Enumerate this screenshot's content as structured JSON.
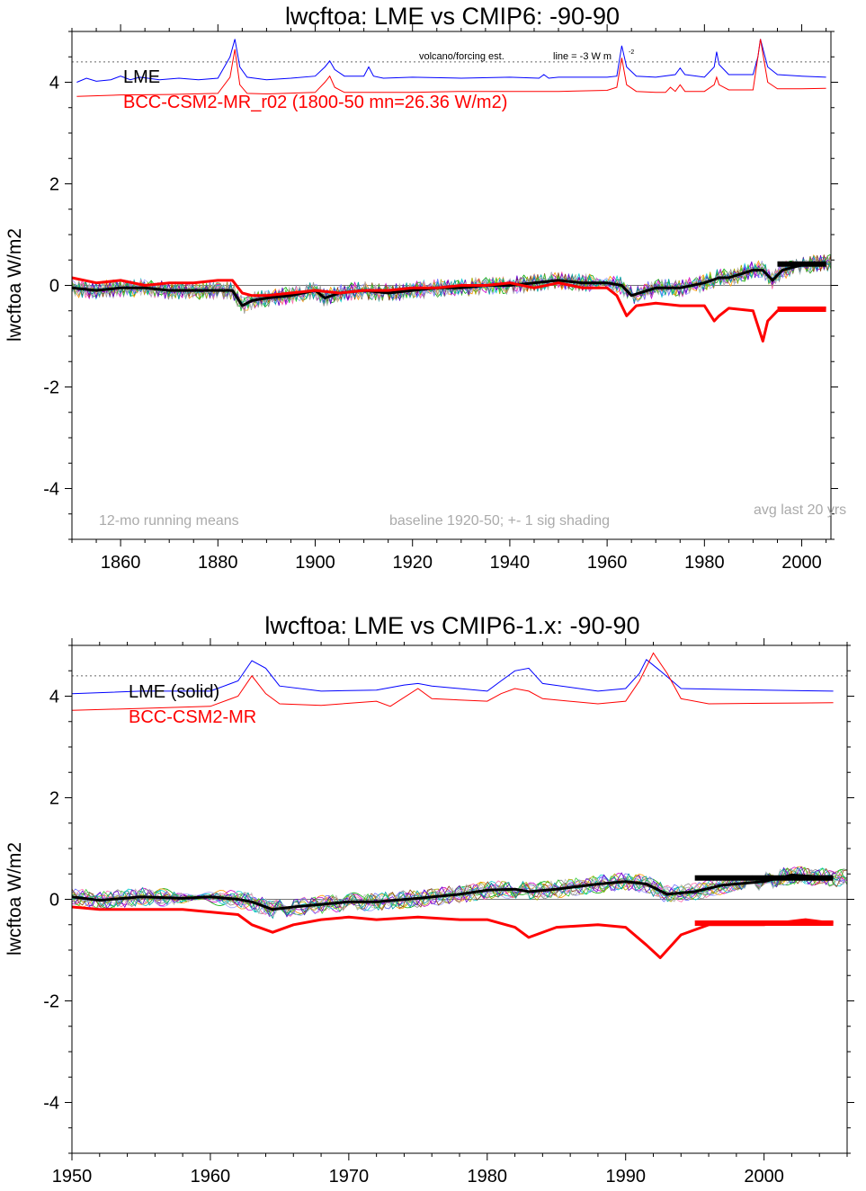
{
  "chart_data": [
    {
      "type": "line",
      "title": "lwcftoa: LME vs CMIP6: -90-90",
      "ylabel": "lwcftoa W/m2",
      "xlabel": "",
      "xlim": [
        1850,
        2006
      ],
      "ylim": [
        -5,
        5
      ],
      "xticks": [
        1860,
        1880,
        1900,
        1920,
        1940,
        1960,
        1980,
        2000
      ],
      "yticks": [
        -4,
        -2,
        0,
        2,
        4
      ],
      "grid": false,
      "reference_lines": {
        "zero": 0,
        "volcano_dotted": 4.4
      },
      "legend": [
        {
          "label": "LME",
          "color": "#000000"
        },
        {
          "label": "BCC-CSM2-MR_r02 (1800-50 mn=26.36 W/m2)",
          "color": "#ff0000"
        }
      ],
      "annotations": {
        "volcano": "volcano/forcing est.",
        "line_note": "line = -3 W m",
        "superscript": "-2",
        "running": "12-mo running means",
        "baseline": "baseline 1920-50; +- 1 sig shading",
        "avg": "avg last 20 yrs"
      },
      "series": [
        {
          "name": "LME",
          "color": "#000000",
          "x": [
            1850,
            1855,
            1860,
            1865,
            1870,
            1875,
            1880,
            1883,
            1885,
            1887,
            1890,
            1895,
            1900,
            1902,
            1905,
            1910,
            1915,
            1920,
            1925,
            1930,
            1935,
            1940,
            1945,
            1950,
            1955,
            1960,
            1963,
            1965,
            1970,
            1975,
            1980,
            1983,
            1985,
            1990,
            1992,
            1994,
            1996,
            2000,
            2005
          ],
          "values": [
            -0.05,
            -0.1,
            -0.05,
            -0.05,
            -0.1,
            -0.1,
            -0.1,
            -0.1,
            -0.4,
            -0.3,
            -0.25,
            -0.2,
            -0.1,
            -0.25,
            -0.15,
            -0.1,
            -0.15,
            -0.1,
            -0.05,
            -0.05,
            0.0,
            0.0,
            0.05,
            0.1,
            0.05,
            0.05,
            0.0,
            -0.2,
            -0.05,
            -0.05,
            0.05,
            0.15,
            0.15,
            0.3,
            0.3,
            0.1,
            0.3,
            0.4,
            0.45
          ]
        },
        {
          "name": "BCC-CSM2-MR_r02",
          "color": "#ff0000",
          "x": [
            1850,
            1855,
            1860,
            1865,
            1870,
            1875,
            1880,
            1883,
            1885,
            1887,
            1890,
            1895,
            1900,
            1905,
            1910,
            1915,
            1920,
            1925,
            1930,
            1935,
            1940,
            1945,
            1950,
            1955,
            1960,
            1962,
            1964,
            1966,
            1970,
            1975,
            1980,
            1982,
            1983,
            1985,
            1990,
            1992,
            1993,
            1995,
            2000,
            2005
          ],
          "values": [
            0.15,
            0.05,
            0.1,
            0.0,
            0.05,
            0.05,
            0.1,
            0.1,
            -0.15,
            -0.2,
            -0.2,
            -0.15,
            -0.1,
            -0.15,
            -0.1,
            -0.1,
            -0.05,
            -0.05,
            0.0,
            0.0,
            0.05,
            -0.05,
            0.05,
            -0.05,
            -0.05,
            -0.2,
            -0.6,
            -0.4,
            -0.35,
            -0.4,
            -0.4,
            -0.7,
            -0.6,
            -0.45,
            -0.5,
            -1.1,
            -0.7,
            -0.5,
            -0.45,
            -0.45
          ]
        }
      ],
      "forcing_lines": [
        {
          "name": "LME",
          "color": "#0000ff",
          "x": [
            1851,
            1853,
            1855,
            1858,
            1860,
            1862,
            1864,
            1868,
            1872,
            1876,
            1880,
            1882.5,
            1883.5,
            1884.5,
            1886,
            1890,
            1895,
            1900,
            1902,
            1903,
            1904,
            1906,
            1910,
            1911,
            1912,
            1914,
            1920,
            1930,
            1940,
            1946,
            1947,
            1948,
            1950,
            1955,
            1960,
            1962,
            1963,
            1964,
            1966,
            1970,
            1974,
            1975,
            1976,
            1980,
            1982,
            1982.5,
            1983,
            1985,
            1990,
            1991,
            1991.5,
            1993,
            1995,
            2000,
            2005
          ],
          "values": [
            4.0,
            4.08,
            4.02,
            4.05,
            4.12,
            4.05,
            4.1,
            4.05,
            4.08,
            4.05,
            4.08,
            4.5,
            4.85,
            4.3,
            4.1,
            4.05,
            4.08,
            4.12,
            4.3,
            4.42,
            4.25,
            4.12,
            4.12,
            4.3,
            4.12,
            4.08,
            4.1,
            4.08,
            4.1,
            4.08,
            4.15,
            4.08,
            4.1,
            4.1,
            4.1,
            4.12,
            4.72,
            4.3,
            4.12,
            4.1,
            4.15,
            4.28,
            4.15,
            4.1,
            4.3,
            4.6,
            4.35,
            4.15,
            4.15,
            4.5,
            4.85,
            4.3,
            4.15,
            4.12,
            4.1
          ]
        },
        {
          "name": "BCC-CSM2-MR",
          "color": "#ff0000",
          "x": [
            1851,
            1860,
            1870,
            1880,
            1882.5,
            1883.5,
            1884.5,
            1886,
            1890,
            1900,
            1902,
            1903,
            1904,
            1906,
            1910,
            1920,
            1930,
            1940,
            1950,
            1960,
            1962,
            1963,
            1964,
            1966,
            1970,
            1972,
            1973,
            1974,
            1975,
            1976,
            1980,
            1982,
            1982.5,
            1983,
            1985,
            1990,
            1991,
            1991.5,
            1993,
            1995,
            2000,
            2005
          ],
          "values": [
            3.72,
            3.75,
            3.76,
            3.78,
            4.1,
            4.65,
            3.95,
            3.78,
            3.77,
            3.8,
            4.0,
            4.12,
            3.9,
            3.8,
            3.8,
            3.8,
            3.82,
            3.82,
            3.82,
            3.84,
            3.9,
            4.48,
            3.95,
            3.82,
            3.8,
            3.8,
            3.9,
            3.82,
            3.95,
            3.82,
            3.82,
            3.95,
            4.1,
            3.95,
            3.85,
            3.85,
            4.5,
            4.85,
            4.0,
            3.87,
            3.87,
            3.88
          ]
        }
      ],
      "last20_averages": [
        {
          "name": "LME",
          "color": "#000000",
          "value": 0.42,
          "x_range": [
            1995,
            2005
          ]
        },
        {
          "name": "BCC-CSM2-MR",
          "color": "#ff0000",
          "value": -0.47,
          "x_range": [
            1995,
            2005
          ]
        }
      ]
    },
    {
      "type": "line",
      "title": "lwcftoa: LME vs CMIP6-1.x: -90-90",
      "ylabel": "lwcftoa W/m2",
      "xlabel": "",
      "xlim": [
        1950,
        2006
      ],
      "ylim": [
        -5,
        5
      ],
      "xticks": [
        1950,
        1960,
        1970,
        1980,
        1990,
        2000
      ],
      "yticks": [
        -4,
        -2,
        0,
        2,
        4
      ],
      "grid": false,
      "reference_lines": {
        "zero": 0,
        "volcano_dotted": 4.4
      },
      "legend": [
        {
          "label": "LME (solid)",
          "color": "#000000"
        },
        {
          "label": "BCC-CSM2-MR",
          "color": "#ff0000"
        }
      ],
      "series": [
        {
          "name": "LME",
          "color": "#000000",
          "x": [
            1950,
            1952,
            1955,
            1958,
            1960,
            1962,
            1963,
            1964.5,
            1966,
            1968,
            1970,
            1972,
            1975,
            1978,
            1980,
            1982,
            1983,
            1985,
            1988,
            1990,
            1991.5,
            1993,
            1995,
            1997,
            2000,
            2002,
            2005
          ],
          "values": [
            0.05,
            -0.02,
            0.05,
            0.02,
            0.05,
            0.0,
            -0.05,
            -0.2,
            -0.15,
            -0.1,
            -0.05,
            -0.05,
            0.02,
            0.1,
            0.18,
            0.2,
            0.15,
            0.2,
            0.3,
            0.35,
            0.3,
            0.1,
            0.15,
            0.28,
            0.35,
            0.48,
            0.42
          ]
        },
        {
          "name": "BCC-CSM2-MR",
          "color": "#ff0000",
          "x": [
            1950,
            1952,
            1955,
            1958,
            1960,
            1962,
            1963,
            1964.5,
            1966,
            1968,
            1970,
            1972,
            1975,
            1978,
            1980,
            1982,
            1983,
            1985,
            1988,
            1990,
            1991.5,
            1992.5,
            1994,
            1996,
            2000,
            2003,
            2005
          ],
          "values": [
            -0.15,
            -0.2,
            -0.2,
            -0.2,
            -0.25,
            -0.3,
            -0.5,
            -0.65,
            -0.5,
            -0.4,
            -0.35,
            -0.4,
            -0.35,
            -0.4,
            -0.4,
            -0.55,
            -0.75,
            -0.55,
            -0.5,
            -0.55,
            -0.9,
            -1.15,
            -0.7,
            -0.5,
            -0.5,
            -0.4,
            -0.47
          ]
        }
      ],
      "forcing_lines": [
        {
          "name": "LME",
          "color": "#0000ff",
          "x": [
            1950,
            1955,
            1960,
            1962,
            1963,
            1964,
            1965,
            1968,
            1972,
            1974,
            1975,
            1976,
            1980,
            1981,
            1982,
            1983,
            1984,
            1988,
            1990,
            1991,
            1991.5,
            1992.5,
            1994,
            2000,
            2005
          ],
          "values": [
            4.05,
            4.1,
            4.1,
            4.3,
            4.7,
            4.55,
            4.2,
            4.1,
            4.12,
            4.22,
            4.25,
            4.2,
            4.1,
            4.3,
            4.5,
            4.55,
            4.25,
            4.1,
            4.15,
            4.45,
            4.72,
            4.5,
            4.15,
            4.12,
            4.1
          ]
        },
        {
          "name": "BCC-CSM2-MR",
          "color": "#ff0000",
          "x": [
            1950,
            1955,
            1960,
            1962,
            1963,
            1964,
            1965,
            1968,
            1972,
            1973,
            1975,
            1976,
            1980,
            1981,
            1982,
            1983,
            1984,
            1988,
            1990,
            1991,
            1992,
            1993,
            1994,
            1996,
            2000,
            2005
          ],
          "values": [
            3.72,
            3.76,
            3.8,
            4.0,
            4.4,
            4.05,
            3.85,
            3.82,
            3.9,
            3.8,
            4.15,
            3.95,
            3.9,
            4.05,
            4.15,
            4.1,
            3.95,
            3.85,
            3.9,
            4.3,
            4.85,
            4.45,
            3.95,
            3.85,
            3.86,
            3.87
          ]
        }
      ],
      "last20_averages": [
        {
          "name": "LME",
          "color": "#000000",
          "value": 0.42,
          "x_range": [
            1995,
            2005
          ]
        },
        {
          "name": "BCC-CSM2-MR",
          "color": "#ff0000",
          "value": -0.47,
          "x_range": [
            1995,
            2005
          ]
        }
      ]
    }
  ]
}
